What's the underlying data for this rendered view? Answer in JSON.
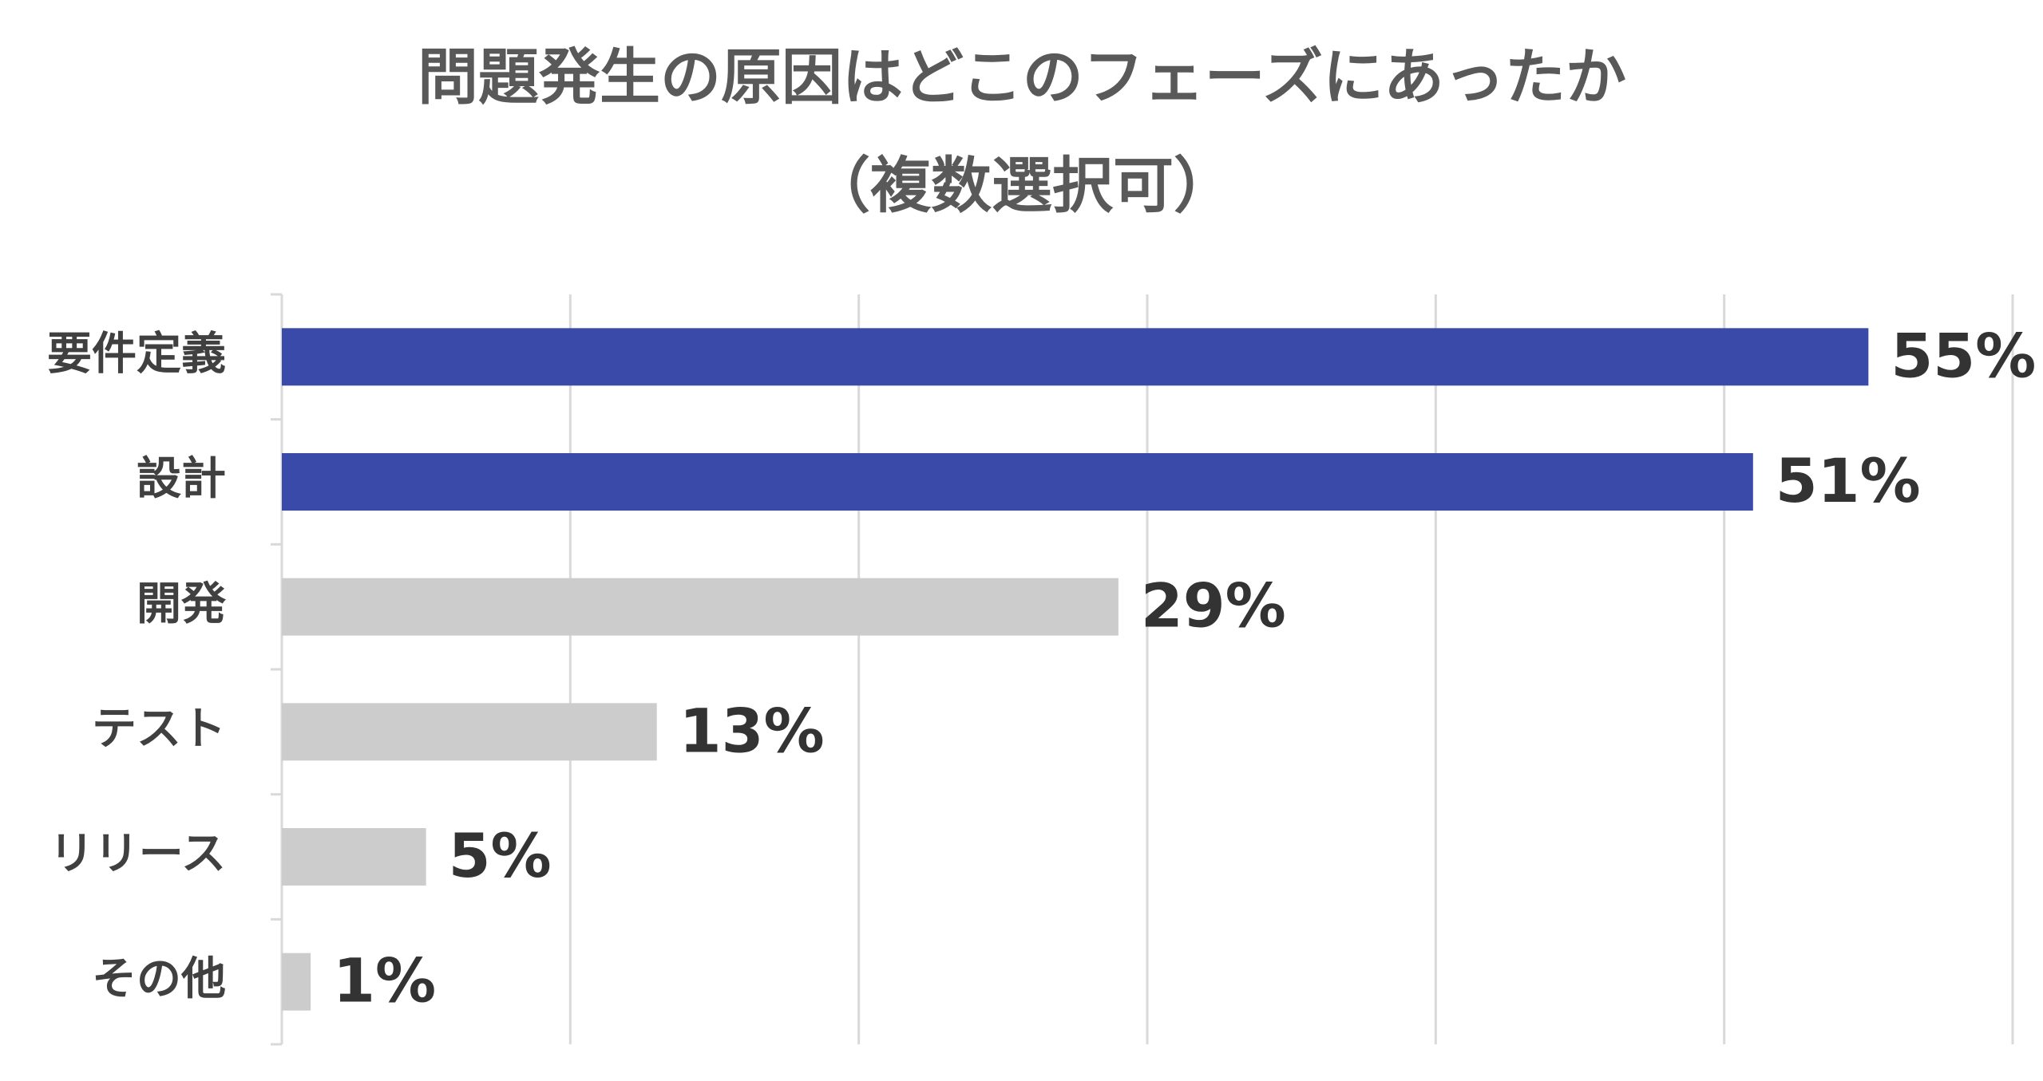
{
  "chart_data": {
    "type": "bar",
    "orientation": "horizontal",
    "title": "問題発生の原因はどこのフェーズにあったか",
    "subtitle": "（複数選択可）",
    "categories": [
      "要件定義",
      "設計",
      "開発",
      "テスト",
      "リリース",
      "その他"
    ],
    "values": [
      55,
      51,
      29,
      13,
      5,
      1
    ],
    "value_labels": [
      "55%",
      "51%",
      "29%",
      "13%",
      "5%",
      "1%"
    ],
    "colors": [
      "#3a4aa8",
      "#3a4aa8",
      "#cccccc",
      "#cccccc",
      "#cccccc",
      "#cccccc"
    ],
    "xlim": [
      0,
      60
    ],
    "xticks": [
      0,
      10,
      20,
      30,
      40,
      50,
      60
    ],
    "grid": true
  }
}
